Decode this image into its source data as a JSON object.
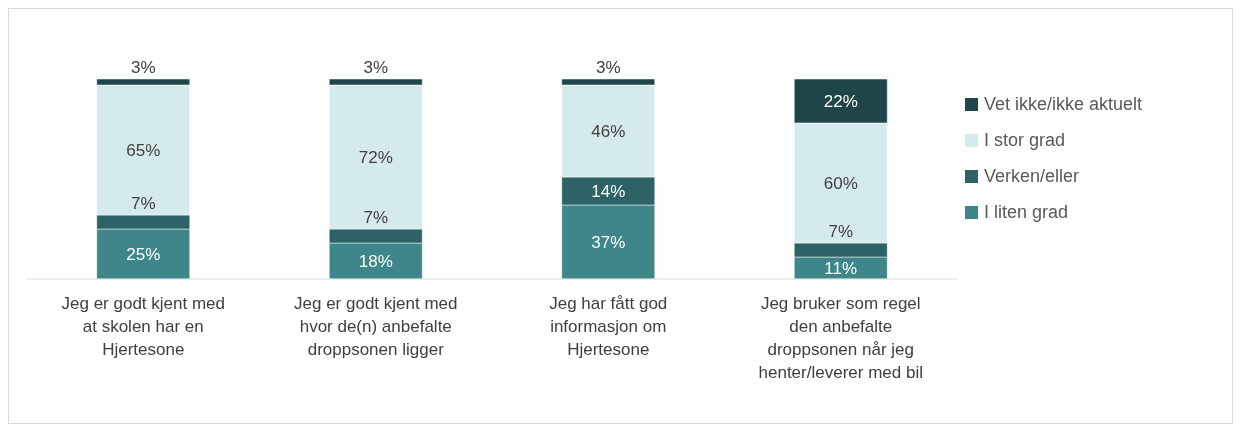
{
  "chart_data": {
    "type": "bar",
    "stacked": true,
    "legend": "right",
    "grid": false,
    "categories": [
      "Jeg er godt kjent med at skolen har en Hjertesone",
      "Jeg er godt kjent med hvor de(n) anbefalte droppsonen ligger",
      "Jeg har fått god informasjon om Hjertesone",
      "Jeg bruker som regel den anbefalte droppsonen når jeg henter/leverer med bil"
    ],
    "series": [
      {
        "name": "I liten grad",
        "color": "#3e8689",
        "values": [
          25,
          18,
          37,
          11
        ],
        "value_labels": [
          "25%",
          "18%",
          "37%",
          "11%"
        ]
      },
      {
        "name": "Verken/eller",
        "color": "#2d6266",
        "values": [
          7,
          7,
          14,
          7
        ],
        "value_labels": [
          "7%",
          "7%",
          "14%",
          "7%"
        ]
      },
      {
        "name": "I stor grad",
        "color": "#d5eaed",
        "values": [
          65,
          72,
          46,
          60
        ],
        "value_labels": [
          "65%",
          "72%",
          "46%",
          "60%"
        ]
      },
      {
        "name": "Vet ikke/ikke aktuelt",
        "color": "#1f4549",
        "values": [
          3,
          3,
          3,
          22
        ],
        "value_labels": [
          "3%",
          "3%",
          "3%",
          "22%"
        ]
      }
    ]
  }
}
